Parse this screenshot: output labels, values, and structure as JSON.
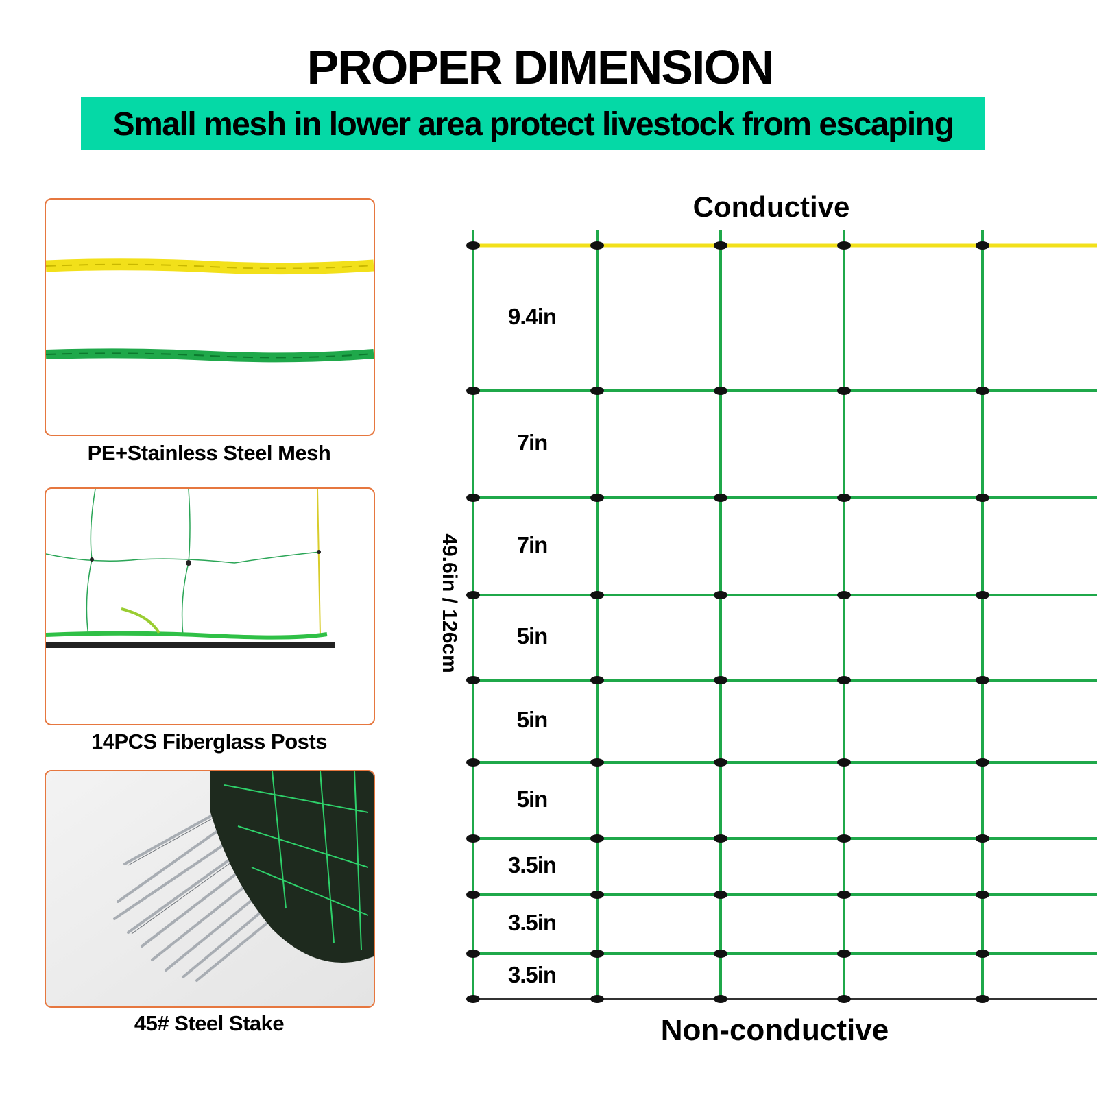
{
  "header": {
    "title": "PROPER DIMENSION",
    "subtitle": "Small mesh in lower area protect livestock from escaping"
  },
  "colors": {
    "banner": "#05d9a6",
    "panel_border": "#e6773f",
    "conductive_wire": "#f2e01a",
    "mesh_green": "#1fa84a",
    "bottom_wire": "#333333",
    "knot": "#111111"
  },
  "features": [
    {
      "caption": "PE+Stainless Steel Mesh"
    },
    {
      "caption": "14PCS Fiberglass Posts"
    },
    {
      "caption": "45# Steel Stake"
    }
  ],
  "diagram": {
    "top_label": "Conductive",
    "bottom_label": "Non-conductive",
    "height_label": "49.6in  /  126cm",
    "row_spacings": [
      "9.4in",
      "7in",
      "7in",
      "5in",
      "5in",
      "5in",
      "3.5in",
      "3.5in",
      "3.5in"
    ]
  }
}
